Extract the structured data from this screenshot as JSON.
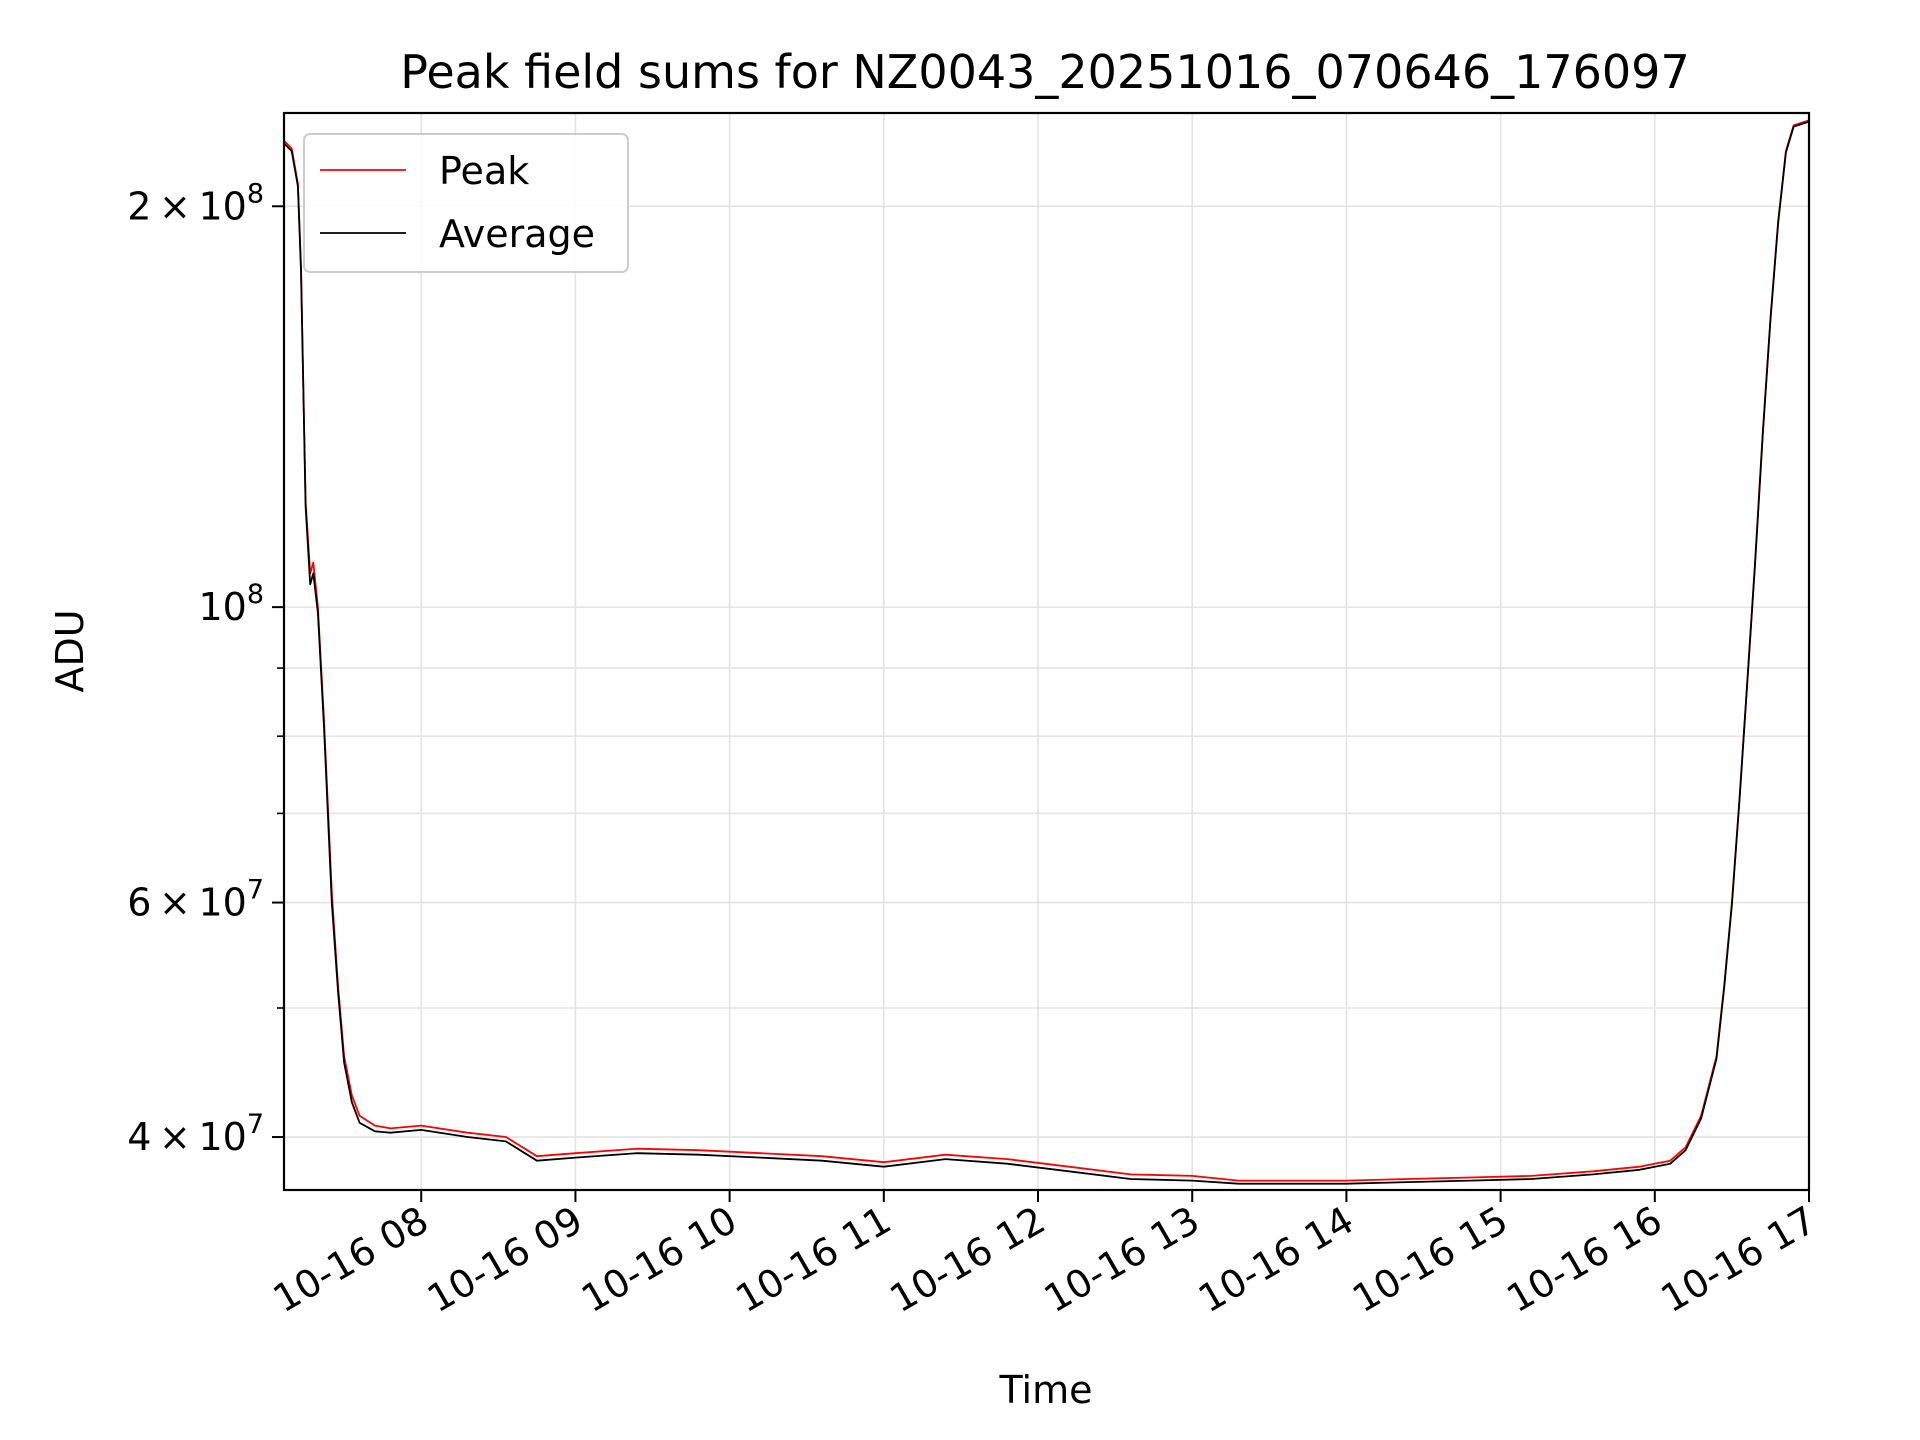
{
  "chart_data": {
    "type": "line",
    "title": "Peak field sums for NZ0043_20251016_070646_176097",
    "xlabel": "Time",
    "ylabel": "ADU",
    "y_scale": "log",
    "xlim": [
      7.11,
      17.0
    ],
    "ylim": [
      36500000,
      235000000
    ],
    "grid": true,
    "legend_position": "top-left",
    "x_ticks": [
      {
        "value": 8,
        "label": "10-16 08"
      },
      {
        "value": 9,
        "label": "10-16 09"
      },
      {
        "value": 10,
        "label": "10-16 10"
      },
      {
        "value": 11,
        "label": "10-16 11"
      },
      {
        "value": 12,
        "label": "10-16 12"
      },
      {
        "value": 13,
        "label": "10-16 13"
      },
      {
        "value": 14,
        "label": "10-16 14"
      },
      {
        "value": 15,
        "label": "10-16 15"
      },
      {
        "value": 16,
        "label": "10-16 16"
      },
      {
        "value": 17,
        "label": "10-16 17"
      }
    ],
    "y_major_ticks": [
      {
        "value": 40000000,
        "mantissa": "4",
        "exponent": "7"
      },
      {
        "value": 60000000,
        "mantissa": "6",
        "exponent": "7"
      },
      {
        "value": 100000000,
        "mantissa": "",
        "exponent": "8"
      },
      {
        "value": 200000000,
        "mantissa": "2",
        "exponent": "8"
      }
    ],
    "y_minor_ticks": [
      50000000,
      70000000,
      80000000,
      90000000
    ],
    "series": [
      {
        "name": "Peak",
        "color": "#ff0000",
        "x": [
          7.11,
          7.16,
          7.2,
          7.22,
          7.25,
          7.28,
          7.3,
          7.33,
          7.37,
          7.42,
          7.46,
          7.5,
          7.55,
          7.6,
          7.7,
          7.8,
          8.0,
          8.3,
          8.55,
          8.75,
          9.0,
          9.4,
          9.8,
          10.2,
          10.6,
          11.0,
          11.4,
          11.8,
          12.2,
          12.6,
          13.0,
          13.3,
          13.7,
          14.0,
          14.4,
          14.8,
          15.2,
          15.6,
          15.9,
          16.1,
          16.2,
          16.3,
          16.4,
          16.45,
          16.5,
          16.55,
          16.6,
          16.65,
          16.7,
          16.75,
          16.8,
          16.85,
          16.9,
          17.0
        ],
        "y": [
          224000000,
          221000000,
          208000000,
          180000000,
          120000000,
          106000000,
          108000000,
          100000000,
          82000000,
          61000000,
          52000000,
          46000000,
          43000000,
          41500000,
          40800000,
          40600000,
          40800000,
          40300000,
          40000000,
          38700000,
          38900000,
          39200000,
          39100000,
          38900000,
          38700000,
          38300000,
          38800000,
          38500000,
          38000000,
          37500000,
          37400000,
          37100000,
          37100000,
          37100000,
          37200000,
          37300000,
          37400000,
          37700000,
          38000000,
          38400000,
          39300000,
          41500000,
          46000000,
          52000000,
          60000000,
          72000000,
          88000000,
          108000000,
          135000000,
          165000000,
          195000000,
          220000000,
          230000000,
          232000000
        ]
      },
      {
        "name": "Average",
        "color": "#000000",
        "x": [
          7.11,
          7.16,
          7.2,
          7.22,
          7.25,
          7.28,
          7.3,
          7.33,
          7.37,
          7.42,
          7.46,
          7.5,
          7.55,
          7.6,
          7.7,
          7.8,
          8.0,
          8.3,
          8.55,
          8.75,
          9.0,
          9.4,
          9.8,
          10.2,
          10.6,
          11.0,
          11.4,
          11.8,
          12.2,
          12.6,
          13.0,
          13.3,
          13.7,
          14.0,
          14.4,
          14.8,
          15.2,
          15.6,
          15.9,
          16.1,
          16.2,
          16.3,
          16.4,
          16.45,
          16.5,
          16.55,
          16.6,
          16.65,
          16.7,
          16.75,
          16.8,
          16.85,
          16.9,
          17.0
        ],
        "y": [
          223000000,
          220000000,
          207000000,
          179000000,
          119000000,
          104000000,
          106000000,
          99000000,
          81000000,
          60000000,
          51500000,
          45500000,
          42500000,
          41000000,
          40400000,
          40300000,
          40500000,
          40000000,
          39700000,
          38400000,
          38600000,
          38900000,
          38800000,
          38600000,
          38400000,
          38000000,
          38500000,
          38200000,
          37700000,
          37200000,
          37100000,
          36900000,
          36900000,
          36900000,
          37000000,
          37100000,
          37200000,
          37500000,
          37800000,
          38200000,
          39100000,
          41300000,
          45800000,
          51800000,
          59800000,
          71800000,
          87800000,
          107500000,
          134500000,
          164500000,
          194500000,
          219500000,
          229500000,
          231500000
        ]
      }
    ]
  }
}
